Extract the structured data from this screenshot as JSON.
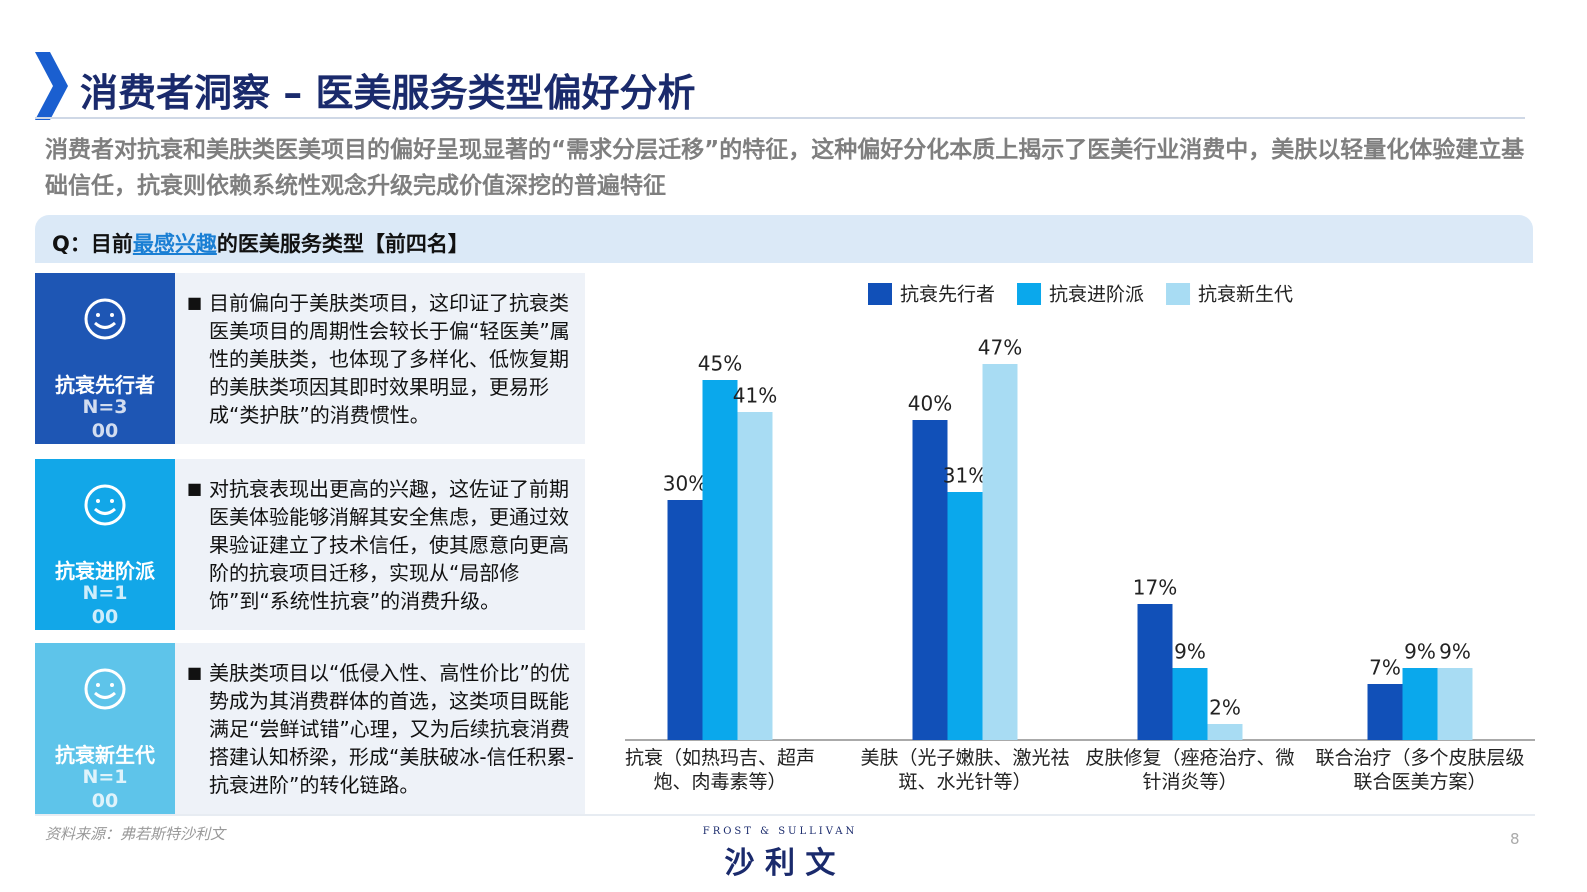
{
  "header": {
    "title": "消费者洞察 – 医美服务类型偏好分析",
    "subtitle": "消费者对抗衰和美肤类医美项目的偏好呈现显著的“需求分层迁移”的特征，这种偏好分化本质上揭示了医美行业消费中，美肤以轻量化体验建立基础信任，抗衰则依赖系统性观念升级完成价值深挖的普遍特征"
  },
  "question": {
    "prefix": "Q：目前",
    "highlight": "最感兴趣",
    "suffix": "的医美服务类型【前四名】"
  },
  "panels": [
    {
      "name": "抗衰先行者",
      "n": "N=300",
      "text": "目前偏向于美肤类项目，这印证了抗衰类医美项目的周期性会较长于偏“轻医美”属性的美肤类，也体现了多样化、低恢复期的美肤类项因其即时效果明显，更易形成“类护肤”的消费惯性。"
    },
    {
      "name": "抗衰进阶派",
      "n": "N=100",
      "text": "对抗衰表现出更高的兴趣，这佐证了前期医美体验能够消解其安全焦虑，更通过效果验证建立了技术信任，使其愿意向更高阶的抗衰项目迁移，实现从“局部修饰”到“系统性抗衰”的消费升级。"
    },
    {
      "name": "抗衰新生代",
      "n": "N=100",
      "text": "美肤类项目以“低侵入性、高性价比”的优势成为其消费群体的首选，这类项目既能满足“尝鲜试错”心理，又为后续抗衰消费搭建认知桥梁，形成“美肤破冰-信任积累-抗衰进阶”的转化链路。"
    }
  ],
  "chart_data": {
    "type": "bar",
    "categories": [
      "抗衰（如热玛吉、超声炮、肉毒素等）",
      "美肤（光子嫩肤、激光祛斑、水光针等）",
      "皮肤修复（痤疮治疗、微针消炎等）",
      "联合治疗（多个皮肤层级联合医美方案）"
    ],
    "series": [
      {
        "name": "抗衰先行者",
        "color": "#1150b8",
        "values": [
          30,
          40,
          17,
          7
        ],
        "value_labels": [
          "30%",
          "40%",
          "17%",
          "7%"
        ]
      },
      {
        "name": "抗衰进阶派",
        "color": "#0aa8ec",
        "values": [
          45,
          31,
          9,
          9
        ],
        "value_labels": [
          "45%",
          "31%",
          "9%",
          "9%"
        ]
      },
      {
        "name": "抗衰新生代",
        "color": "#a8dcf3",
        "values": [
          41,
          47,
          2,
          9
        ],
        "value_labels": [
          "41%",
          "47%",
          "2%",
          "9%"
        ]
      }
    ],
    "legend": "top"
  },
  "footer": {
    "source": "资料来源：弗若斯特沙利文",
    "logo_en": "FROST & SULLIVAN",
    "logo_cn": "沙 利 文",
    "page": "8"
  }
}
